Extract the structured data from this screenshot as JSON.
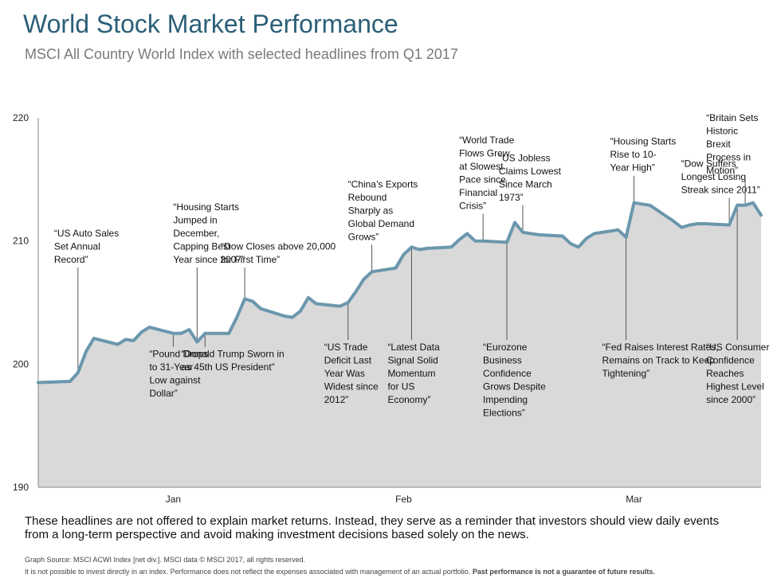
{
  "header": {
    "title": "World Stock Market Performance",
    "subtitle": "MSCI All Country World Index with selected headlines from Q1 2017"
  },
  "footer": {
    "disclaimer": "These headlines are not offered to explain market returns. Instead, they serve as a reminder that investors should view daily events from a long-term perspective and avoid making investment decisions based solely on the news.",
    "source": "Graph Source: MSCI ACWI Index [net div.]. MSCI data © MSCI 2017, all rights reserved.",
    "note": "It is not possible to invest directly in an index. Performance does not reflect the expenses associated with management of an actual portfolio.",
    "note_bold": "Past performance is not a guarantee of future results."
  },
  "colors": {
    "line": "#6b97ad",
    "area": "#d9d9d9",
    "title": "#2b5f78"
  },
  "chart_data": {
    "type": "area",
    "title": "World Stock Market Performance",
    "subtitle": "MSCI All Country World Index with selected headlines from Q1 2017",
    "ylim": [
      190,
      220
    ],
    "yticks": [
      190,
      200,
      210,
      220
    ],
    "xlim": [
      "2016-12-30",
      "2017-03-31"
    ],
    "xticks": [
      {
        "label": "Jan",
        "date": "2017-01-16"
      },
      {
        "label": "Feb",
        "date": "2017-02-14"
      },
      {
        "label": "Mar",
        "date": "2017-03-15"
      }
    ],
    "x": [
      "2016-12-30",
      "2017-01-03",
      "2017-01-04",
      "2017-01-05",
      "2017-01-06",
      "2017-01-09",
      "2017-01-10",
      "2017-01-11",
      "2017-01-12",
      "2017-01-13",
      "2017-01-16",
      "2017-01-17",
      "2017-01-18",
      "2017-01-19",
      "2017-01-20",
      "2017-01-23",
      "2017-01-24",
      "2017-01-25",
      "2017-01-26",
      "2017-01-27",
      "2017-01-30",
      "2017-01-31",
      "2017-02-01",
      "2017-02-02",
      "2017-02-03",
      "2017-02-06",
      "2017-02-07",
      "2017-02-08",
      "2017-02-09",
      "2017-02-10",
      "2017-02-13",
      "2017-02-14",
      "2017-02-15",
      "2017-02-16",
      "2017-02-17",
      "2017-02-20",
      "2017-02-21",
      "2017-02-22",
      "2017-02-23",
      "2017-02-24",
      "2017-02-27",
      "2017-02-28",
      "2017-03-01",
      "2017-03-02",
      "2017-03-03",
      "2017-03-06",
      "2017-03-07",
      "2017-03-08",
      "2017-03-09",
      "2017-03-10",
      "2017-03-13",
      "2017-03-14",
      "2017-03-15",
      "2017-03-16",
      "2017-03-17",
      "2017-03-20",
      "2017-03-21",
      "2017-03-22",
      "2017-03-23",
      "2017-03-24",
      "2017-03-27",
      "2017-03-28",
      "2017-03-29",
      "2017-03-30",
      "2017-03-31"
    ],
    "series": [
      {
        "values": [
          198.5,
          198.6,
          199.3,
          201.0,
          202.1,
          201.6,
          202.0,
          201.9,
          202.6,
          203.0,
          202.5,
          202.5,
          202.8,
          201.8,
          202.5,
          202.5,
          203.8,
          205.3,
          205.1,
          204.5,
          203.9,
          203.8,
          204.3,
          205.4,
          204.9,
          204.7,
          205.0,
          205.9,
          206.9,
          207.5,
          207.8,
          208.9,
          209.5,
          209.3,
          209.4,
          209.5,
          210.1,
          210.6,
          210.0,
          210.0,
          209.9,
          211.5,
          210.7,
          210.6,
          210.5,
          210.4,
          209.8,
          209.5,
          210.2,
          210.6,
          210.9,
          210.3,
          213.1,
          213.0,
          212.9,
          211.6,
          211.1,
          211.3,
          211.4,
          211.4,
          211.3,
          212.9,
          212.9,
          213.1,
          212.1
        ]
      }
    ],
    "annotations": [
      {
        "text": [
          "“US Auto Sales",
          "Set Annual",
          "Record”"
        ],
        "date": "2017-01-04",
        "position": "above"
      },
      {
        "text": [
          "“Pound Drops",
          "to 31-Year",
          "Low against",
          "Dollar”"
        ],
        "date": "2017-01-16",
        "position": "below"
      },
      {
        "text": [
          "“Housing Starts",
          "Jumped in",
          "December,",
          "Capping Best",
          "Year since 2007”"
        ],
        "date": "2017-01-19",
        "position": "above"
      },
      {
        "text": [
          "“Donald Trump Sworn in",
          "as 45th US President”"
        ],
        "date": "2017-01-20",
        "position": "below"
      },
      {
        "text": [
          "“Dow Closes above 20,000",
          "for First Time”"
        ],
        "date": "2017-01-25",
        "position": "above"
      },
      {
        "text": [
          "“US Trade",
          "Deficit Last",
          "Year Was",
          "Widest since",
          "2012”"
        ],
        "date": "2017-02-07",
        "position": "below"
      },
      {
        "text": [
          "“China’s Exports",
          "Rebound",
          "Sharply as",
          "Global Demand",
          "Grows”"
        ],
        "date": "2017-02-10",
        "position": "above"
      },
      {
        "text": [
          "“Latest Data",
          "Signal Solid",
          "Momentum",
          "for US",
          "Economy”"
        ],
        "date": "2017-02-15",
        "position": "below"
      },
      {
        "text": [
          "“World Trade",
          "Flows Grew",
          "at Slowest",
          "Pace since",
          "Financial",
          "Crisis”"
        ],
        "date": "2017-02-24",
        "position": "above"
      },
      {
        "text": [
          "“Eurozone",
          "Business",
          "Confidence",
          "Grows Despite",
          "Impending",
          "Elections”"
        ],
        "date": "2017-02-27",
        "position": "below"
      },
      {
        "text": [
          "“US Jobless",
          "Claims Lowest",
          "Since March",
          "1973”"
        ],
        "date": "2017-03-01",
        "position": "above"
      },
      {
        "text": [
          "“Housing Starts",
          "Rise to 10-",
          "Year High”"
        ],
        "date": "2017-03-15",
        "position": "above"
      },
      {
        "text": [
          "“Fed Raises Interest Rates,",
          "Remains on Track to Keep",
          "Tightening”"
        ],
        "date": "2017-03-14",
        "position": "below"
      },
      {
        "text": [
          "“Dow Suffers",
          "Longest Losing",
          "Streak since 2011”"
        ],
        "date": "2017-03-27",
        "position": "above"
      },
      {
        "text": [
          "“Britain Sets",
          "Historic",
          "Brexit",
          "Process in",
          "Motion”"
        ],
        "date": "2017-03-29",
        "position": "above"
      },
      {
        "text": [
          "“US Consumer",
          "Confidence",
          "Reaches",
          "Highest Level",
          "since 2000”"
        ],
        "date": "2017-03-28",
        "position": "below"
      }
    ]
  }
}
